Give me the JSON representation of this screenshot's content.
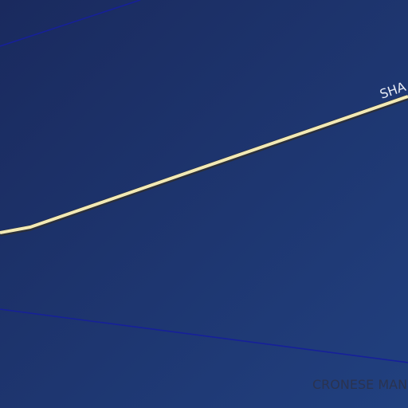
{
  "map": {
    "road_label": "SHA",
    "place_label": "CRONESE MAN"
  }
}
